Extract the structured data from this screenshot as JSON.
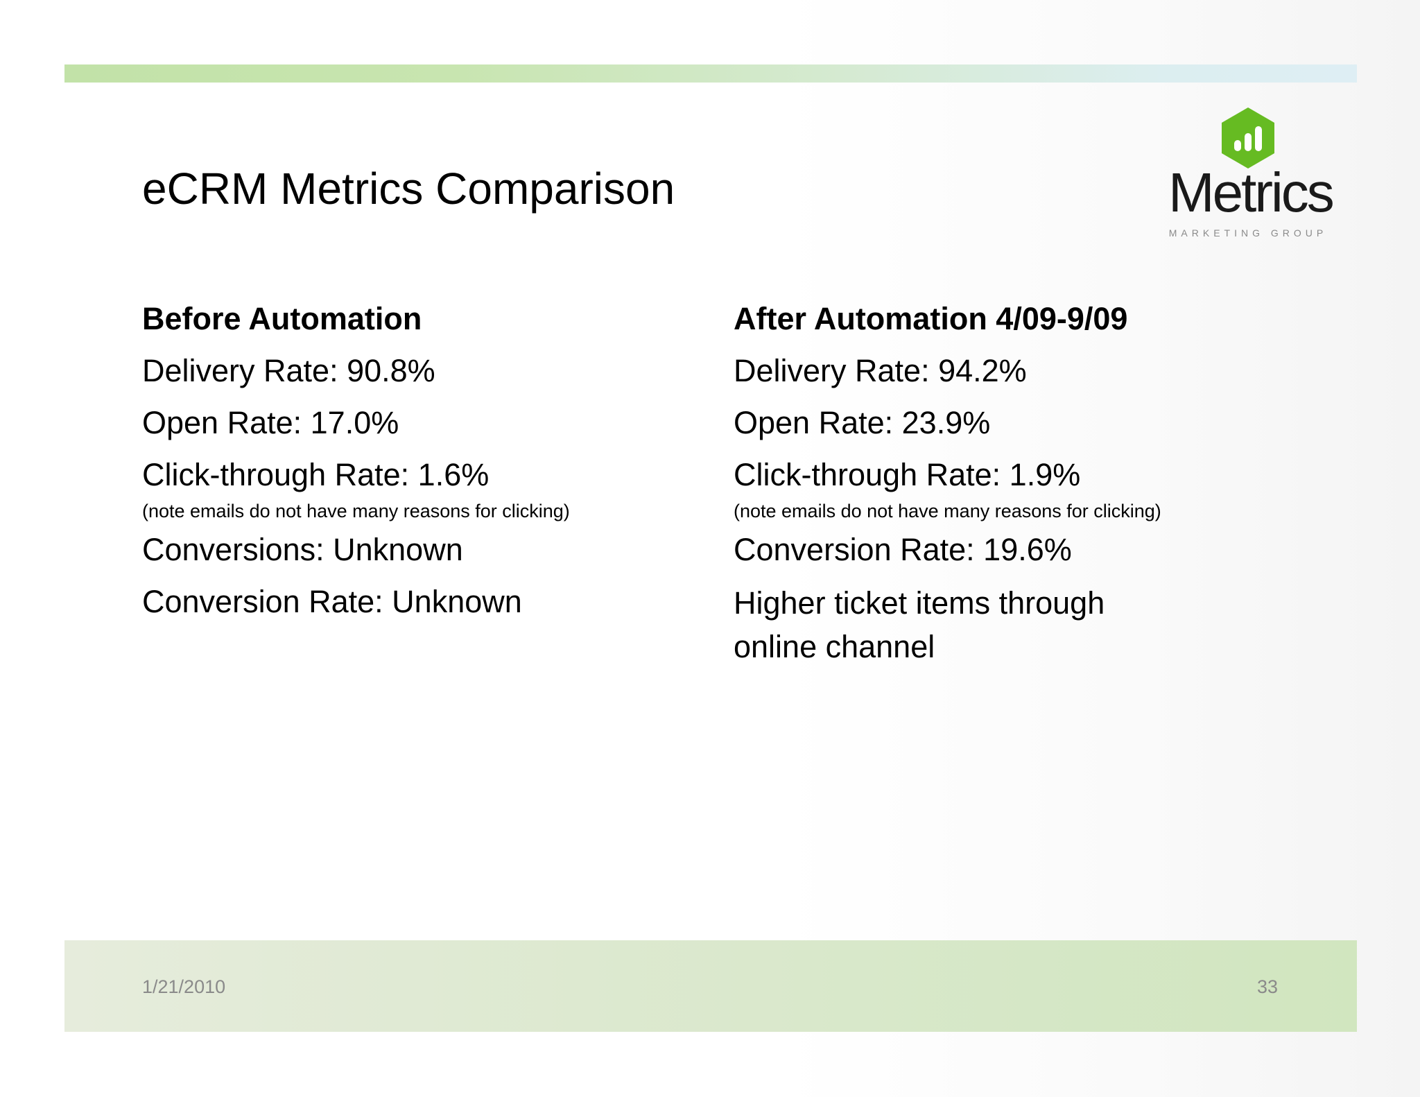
{
  "slide": {
    "title": "eCRM Metrics Comparison",
    "accent_color": "#66bb22",
    "logo": {
      "icon": "bar-chart-hexagon-icon",
      "wordmark": "Metrics",
      "tagline": "MARKETING GROUP"
    },
    "before": {
      "heading": "Before Automation",
      "delivery_rate": "Delivery Rate: 90.8%",
      "open_rate": "Open Rate: 17.0%",
      "ctr": "Click-through Rate: 1.6%",
      "note": "(note emails do not have many reasons for clicking)",
      "conversions": "Conversions: Unknown",
      "conversion_rate": "Conversion Rate: Unknown"
    },
    "after": {
      "heading": "After Automation 4/09-9/09",
      "delivery_rate": "Delivery Rate: 94.2%",
      "open_rate": "Open Rate: 23.9%",
      "ctr": "Click-through Rate: 1.9%",
      "note": "(note emails do not have many reasons for clicking)",
      "conversion_rate": "Conversion Rate: 19.6%",
      "higher_ticket": "Higher ticket items through online channel"
    },
    "footer": {
      "date": "1/21/2010",
      "page_number": "33"
    }
  }
}
